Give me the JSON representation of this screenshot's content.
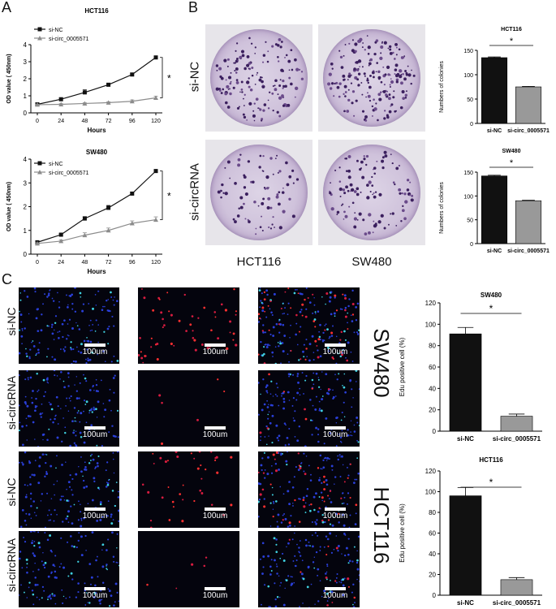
{
  "panels": {
    "A": "A",
    "B": "B",
    "C": "C"
  },
  "panel_a": {
    "charts": [
      {
        "title": "HCT116",
        "xlabel": "Hours",
        "ylabel": "OD value ( 450nm)",
        "x": [
          0,
          24,
          48,
          72,
          96,
          120
        ],
        "xticks": [
          "0",
          "24",
          "48",
          "72",
          "96",
          "120"
        ],
        "yticks": [
          "0",
          "1",
          "2",
          "3",
          "4"
        ],
        "ylim": [
          0,
          4
        ],
        "series": [
          {
            "name": "si-NC",
            "values": [
              0.5,
              0.8,
              1.2,
              1.65,
              2.25,
              3.25
            ],
            "err": [
              0.03,
              0.06,
              0.15,
              0.08,
              0.08,
              0.05
            ],
            "color": "#111111",
            "marker": "square"
          },
          {
            "name": "si-circ_0005571",
            "values": [
              0.48,
              0.5,
              0.55,
              0.6,
              0.68,
              0.88
            ],
            "err": [
              0.03,
              0.04,
              0.04,
              0.05,
              0.08,
              0.1
            ],
            "color": "#8c8c8c",
            "marker": "triangle"
          }
        ],
        "significance": "*"
      },
      {
        "title": "SW480",
        "xlabel": "Hours",
        "ylabel": "OD value ( 450nm)",
        "x": [
          0,
          24,
          48,
          72,
          96,
          120
        ],
        "xticks": [
          "0",
          "24",
          "48",
          "72",
          "96",
          "120"
        ],
        "yticks": [
          "0",
          "1",
          "2",
          "3",
          "4"
        ],
        "ylim": [
          0,
          4
        ],
        "series": [
          {
            "name": "si-NC",
            "values": [
              0.5,
              0.82,
              1.5,
              1.95,
              2.55,
              3.5
            ],
            "err": [
              0.03,
              0.05,
              0.08,
              0.1,
              0.06,
              0.05
            ],
            "color": "#111111",
            "marker": "square"
          },
          {
            "name": "si-circ_0005571",
            "values": [
              0.45,
              0.55,
              0.8,
              1.0,
              1.3,
              1.45
            ],
            "err": [
              0.03,
              0.05,
              0.1,
              0.1,
              0.1,
              0.12
            ],
            "color": "#8c8c8c",
            "marker": "triangle"
          }
        ],
        "significance": "*"
      }
    ]
  },
  "panel_b": {
    "row_labels": [
      "si-NC",
      "si-circRNA"
    ],
    "col_labels": [
      "HCT116",
      "SW480"
    ],
    "charts": [
      {
        "title": "HCT116",
        "ylabel": "Numbers of colonies",
        "categories": [
          "si-NC",
          "si-circ_0005571"
        ],
        "values": [
          135,
          75
        ],
        "err": [
          1.5,
          1
        ],
        "yticks": [
          "0",
          "50",
          "100",
          "150"
        ],
        "ylim": [
          0,
          150
        ],
        "colors": [
          "#111111",
          "#999999"
        ],
        "significance": "*"
      },
      {
        "title": "SW480",
        "ylabel": "Numbers of colonies",
        "categories": [
          "si-NC",
          "si-circ_0005571"
        ],
        "values": [
          142,
          90
        ],
        "err": [
          1.5,
          1
        ],
        "yticks": [
          "0",
          "50",
          "100",
          "150"
        ],
        "ylim": [
          0,
          150
        ],
        "colors": [
          "#111111",
          "#999999"
        ],
        "significance": "*"
      }
    ]
  },
  "panel_c": {
    "row_labels": [
      "si-NC",
      "si-circRNA",
      "si-NC",
      "si-circRNA"
    ],
    "group_labels": [
      "SW480",
      "HCT116"
    ],
    "scale_label": "100um",
    "charts": [
      {
        "title": "SW480",
        "ylabel": "Edu positive cell (%)",
        "categories": [
          "si-NC",
          "si-circ_0005571"
        ],
        "values": [
          91,
          14
        ],
        "err": [
          6,
          2
        ],
        "yticks": [
          "0",
          "20",
          "40",
          "60",
          "80",
          "100",
          "120"
        ],
        "ylim": [
          0,
          120
        ],
        "colors": [
          "#111111",
          "#999999"
        ],
        "significance": "*"
      },
      {
        "title": "HCT116",
        "ylabel": "Edu positive cell (%)",
        "categories": [
          "si-NC",
          "si-circ_0005571"
        ],
        "values": [
          96,
          15
        ],
        "err": [
          8,
          2
        ],
        "yticks": [
          "0",
          "20",
          "40",
          "60",
          "80",
          "100",
          "120"
        ],
        "ylim": [
          0,
          120
        ],
        "colors": [
          "#111111",
          "#999999"
        ],
        "significance": "*"
      }
    ]
  },
  "chart_data": [
    {
      "type": "line",
      "title": "HCT116",
      "xlabel": "Hours",
      "ylabel": "OD value ( 450nm)",
      "x": [
        0,
        24,
        48,
        72,
        96,
        120
      ],
      "ylim": [
        0,
        4
      ],
      "series": [
        {
          "name": "si-NC",
          "values": [
            0.5,
            0.8,
            1.2,
            1.65,
            2.25,
            3.25
          ]
        },
        {
          "name": "si-circ_0005571",
          "values": [
            0.48,
            0.5,
            0.55,
            0.6,
            0.68,
            0.88
          ]
        }
      ]
    },
    {
      "type": "line",
      "title": "SW480",
      "xlabel": "Hours",
      "ylabel": "OD value ( 450nm)",
      "x": [
        0,
        24,
        48,
        72,
        96,
        120
      ],
      "ylim": [
        0,
        4
      ],
      "series": [
        {
          "name": "si-NC",
          "values": [
            0.5,
            0.82,
            1.5,
            1.95,
            2.55,
            3.5
          ]
        },
        {
          "name": "si-circ_0005571",
          "values": [
            0.45,
            0.55,
            0.8,
            1.0,
            1.3,
            1.45
          ]
        }
      ]
    },
    {
      "type": "bar",
      "title": "HCT116",
      "ylabel": "Numbers of colonies",
      "categories": [
        "si-NC",
        "si-circ_0005571"
      ],
      "values": [
        135,
        75
      ],
      "ylim": [
        0,
        150
      ]
    },
    {
      "type": "bar",
      "title": "SW480",
      "ylabel": "Numbers of colonies",
      "categories": [
        "si-NC",
        "si-circ_0005571"
      ],
      "values": [
        142,
        90
      ],
      "ylim": [
        0,
        150
      ]
    },
    {
      "type": "bar",
      "title": "SW480",
      "ylabel": "Edu positive cell (%)",
      "categories": [
        "si-NC",
        "si-circ_0005571"
      ],
      "values": [
        91,
        14
      ],
      "ylim": [
        0,
        120
      ]
    },
    {
      "type": "bar",
      "title": "HCT116",
      "ylabel": "Edu positive cell (%)",
      "categories": [
        "si-NC",
        "si-circ_0005571"
      ],
      "values": [
        96,
        15
      ],
      "ylim": [
        0,
        120
      ]
    }
  ]
}
